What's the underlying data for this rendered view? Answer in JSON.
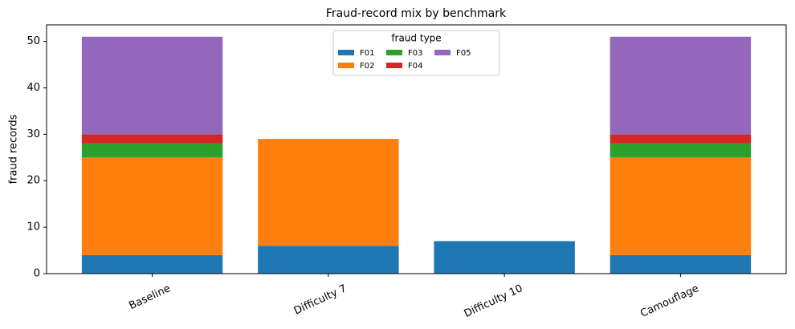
{
  "chart_data": {
    "type": "stacked_bar",
    "title": "Fraud-record mix by benchmark",
    "y_label": "fraud records",
    "categories": [
      "Baseline",
      "Difficulty 7",
      "Difficulty 10",
      "Camouflage"
    ],
    "series": [
      {
        "name": "F01",
        "color": "#1f77b4",
        "values": [
          4,
          6,
          7,
          4
        ]
      },
      {
        "name": "F02",
        "color": "#ff7f0e",
        "values": [
          21,
          23,
          0,
          21
        ]
      },
      {
        "name": "F03",
        "color": "#2ca02c",
        "values": [
          3,
          0,
          0,
          3
        ]
      },
      {
        "name": "F04",
        "color": "#d62728",
        "values": [
          2,
          0,
          0,
          2
        ]
      },
      {
        "name": "F05",
        "color": "#9467bd",
        "values": [
          21,
          0,
          0,
          21
        ]
      }
    ],
    "ylim": [
      0,
      53.55
    ],
    "yticks": [
      0,
      10,
      20,
      30,
      40,
      50
    ],
    "legend_title": "fraud type",
    "legend_loc": "upper center"
  }
}
